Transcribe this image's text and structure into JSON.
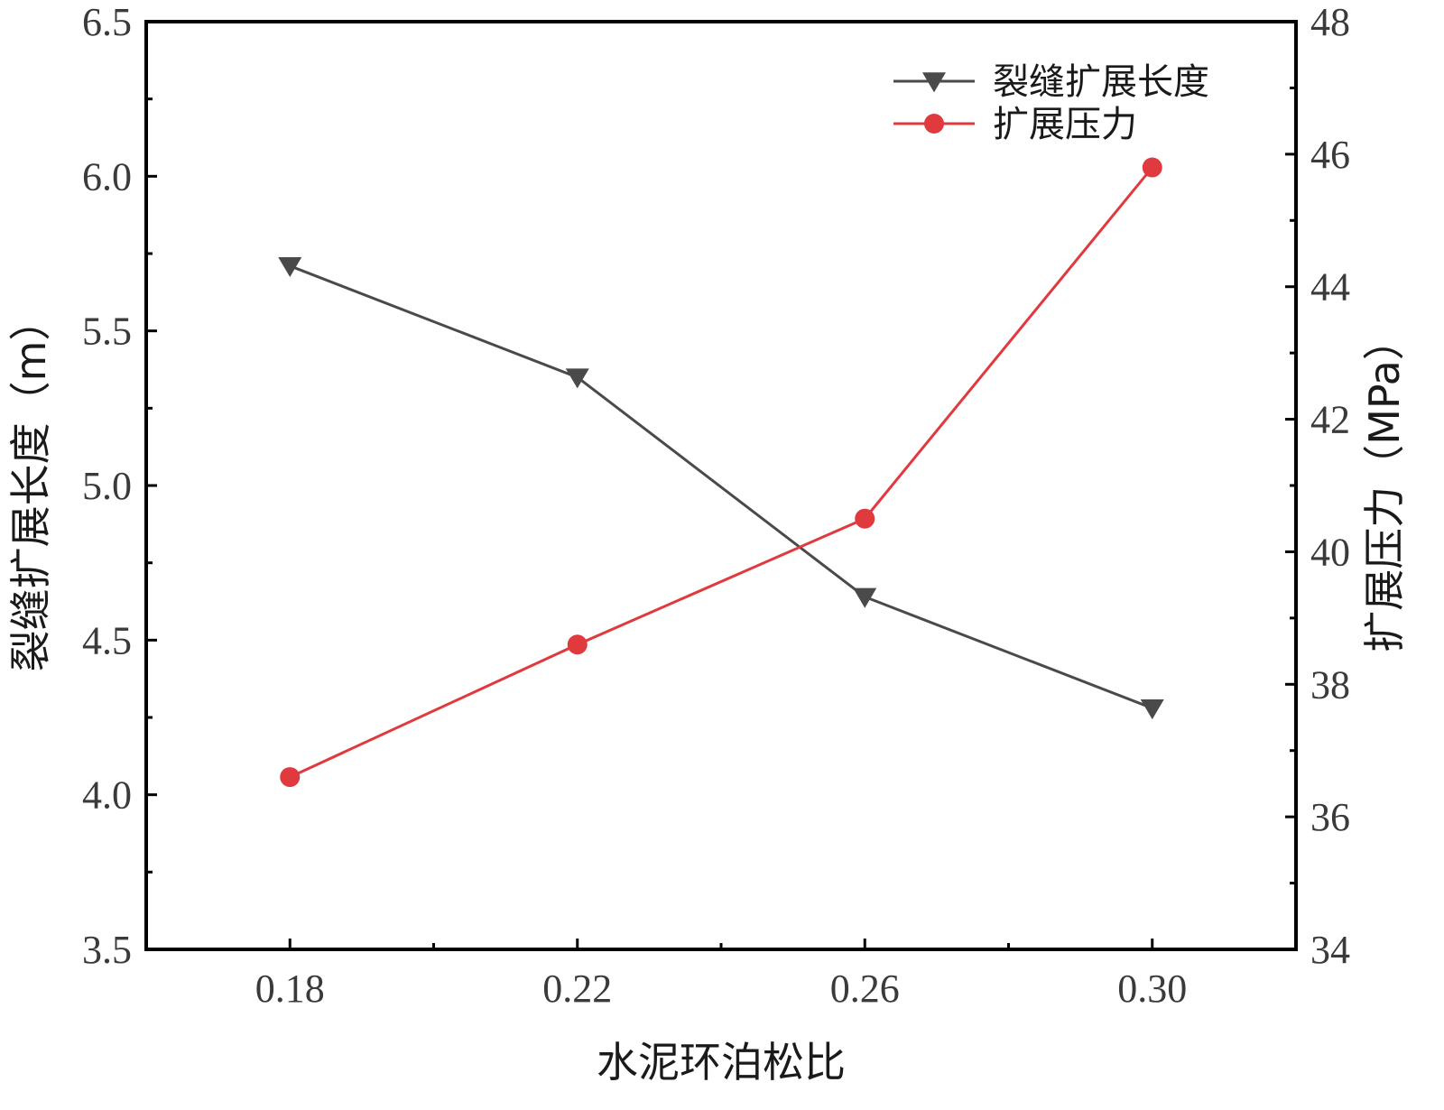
{
  "chart_data": {
    "type": "line",
    "x": [
      0.18,
      0.22,
      0.26,
      0.3
    ],
    "x_tick_labels": [
      "0.18",
      "0.22",
      "0.26",
      "0.30"
    ],
    "xlabel": "水泥环泊松比",
    "xlim": [
      0.16,
      0.32
    ],
    "left_axis": {
      "label": "裂缝扩展长度（m）",
      "ylim": [
        3.5,
        6.5
      ],
      "ticks": [
        "3.5",
        "4.0",
        "4.5",
        "5.0",
        "5.5",
        "6.0",
        "6.5"
      ]
    },
    "right_axis": {
      "label": "扩展压力（MPa）",
      "ylim": [
        34,
        48
      ],
      "ticks": [
        "34",
        "36",
        "38",
        "40",
        "42",
        "44",
        "46",
        "48"
      ]
    },
    "series": [
      {
        "name": "裂缝扩展长度",
        "axis": "left",
        "marker": "triangle-down",
        "color": "#4a4a4a",
        "values": [
          5.71,
          5.35,
          4.64,
          4.28
        ]
      },
      {
        "name": "扩展压力",
        "axis": "right",
        "marker": "circle",
        "color": "#e0393e",
        "values": [
          36.6,
          38.6,
          40.5,
          45.8
        ]
      }
    ],
    "legend_position": "top-right",
    "grid": false
  }
}
